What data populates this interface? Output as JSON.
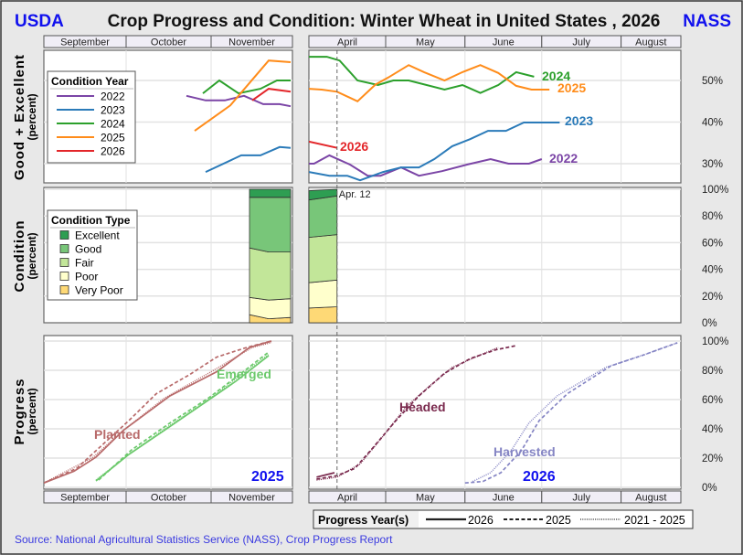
{
  "header": {
    "left_logo": "USDA",
    "title": "Crop Progress and Condition: Winter Wheat in United States , 2026",
    "right_logo": "NASS"
  },
  "footer": {
    "source": "Source: National Agricultural Statistics Service (NASS), Crop Progress Report"
  },
  "colors": {
    "logo": "#1010ee",
    "source": "#3a3ae0",
    "year_label": "#1010ee",
    "2022": "#7b45a6",
    "2023": "#2b7bb9",
    "2024": "#2ca02c",
    "2025": "#ff8c1a",
    "2026": "#e3262a",
    "Excellent": "#2e9e52",
    "Good": "#78c679",
    "Fair": "#c2e699",
    "Poor": "#ffffcc",
    "Very Poor": "#fed976",
    "Planted": "#b86a6a",
    "Emerged": "#6cc96c",
    "Headed": "#7a2a4e",
    "Harvested": "#8585c4"
  },
  "left_months": [
    "September",
    "October",
    "November"
  ],
  "right_months": [
    "April",
    "May",
    "June",
    "July",
    "August"
  ],
  "marker": {
    "label": "Apr. 12",
    "date": "04-12"
  },
  "chart_data": [
    {
      "type": "line",
      "ylabel": "Good + Excellent",
      "ylabel_sub": "(percent)",
      "yticks": [
        "30%",
        "40%",
        "50%"
      ],
      "ylim": [
        25,
        57
      ],
      "grid": true,
      "legend": {
        "title": "Condition Year",
        "placement": "top-left",
        "entries": [
          "2022",
          "2023",
          "2024",
          "2025",
          "2026"
        ]
      },
      "left_year": 2025,
      "right_year": 2026,
      "series": [
        {
          "name": "2022",
          "left": [
            [
              "10-23",
              46.3
            ],
            [
              "10-30",
              45.2
            ],
            [
              "11-06",
              45.2
            ],
            [
              "11-13",
              46.3
            ],
            [
              "11-20",
              44.3
            ],
            [
              "11-26",
              44.3
            ],
            [
              "11-30",
              43.8
            ]
          ],
          "right": [
            [
              "04-01",
              30
            ],
            [
              "04-03",
              30
            ],
            [
              "04-09",
              32
            ],
            [
              "04-17",
              29.8
            ],
            [
              "04-24",
              27.1
            ],
            [
              "04-29",
              27.1
            ],
            [
              "05-07",
              29.1
            ],
            [
              "05-14",
              27.1
            ],
            [
              "05-23",
              28.2
            ],
            [
              "06-02",
              29.8
            ],
            [
              "06-11",
              31.1
            ],
            [
              "06-18",
              30
            ],
            [
              "06-26",
              30
            ],
            [
              "07-01",
              31.1
            ]
          ]
        },
        {
          "name": "2023",
          "left": [
            [
              "10-30",
              28
            ],
            [
              "11-12",
              32
            ],
            [
              "11-19",
              32
            ],
            [
              "11-26",
              34
            ],
            [
              "11-30",
              33.8
            ]
          ],
          "right": [
            [
              "04-01",
              28
            ],
            [
              "04-09",
              27.1
            ],
            [
              "04-16",
              27.1
            ],
            [
              "04-21",
              26
            ],
            [
              "04-30",
              28
            ],
            [
              "05-07",
              29.1
            ],
            [
              "05-14",
              29.1
            ],
            [
              "05-20",
              31.1
            ],
            [
              "05-27",
              34.2
            ],
            [
              "06-03",
              35.9
            ],
            [
              "06-10",
              37.9
            ],
            [
              "06-17",
              37.9
            ],
            [
              "06-24",
              39.9
            ],
            [
              "07-08",
              39.9
            ]
          ]
        },
        {
          "name": "2024",
          "left": [
            [
              "10-29",
              46.9
            ],
            [
              "11-04",
              50
            ],
            [
              "11-11",
              46.9
            ],
            [
              "11-19",
              48
            ],
            [
              "11-25",
              50
            ],
            [
              "11-30",
              50
            ]
          ],
          "right": [
            [
              "04-01",
              55.7
            ],
            [
              "04-08",
              55.7
            ],
            [
              "04-13",
              54.8
            ],
            [
              "04-20",
              50
            ],
            [
              "04-28",
              48.9
            ],
            [
              "05-04",
              50
            ],
            [
              "05-10",
              50
            ],
            [
              "05-24",
              47.8
            ],
            [
              "05-31",
              48.9
            ],
            [
              "06-07",
              47
            ],
            [
              "06-14",
              48.9
            ],
            [
              "06-21",
              52
            ],
            [
              "06-28",
              50.9
            ]
          ]
        },
        {
          "name": "2025",
          "left": [
            [
              "10-26",
              37.9
            ],
            [
              "11-08",
              44
            ],
            [
              "11-22",
              54.8
            ],
            [
              "11-30",
              54.4
            ]
          ],
          "right": [
            [
              "04-01",
              48
            ],
            [
              "04-06",
              47.8
            ],
            [
              "04-12",
              47.3
            ],
            [
              "04-20",
              45
            ],
            [
              "04-27",
              49
            ],
            [
              "05-02",
              50.7
            ],
            [
              "05-10",
              53.7
            ],
            [
              "05-16",
              52
            ],
            [
              "05-24",
              50
            ],
            [
              "05-31",
              52
            ],
            [
              "06-07",
              53.7
            ],
            [
              "06-14",
              51.8
            ],
            [
              "06-21",
              48.7
            ],
            [
              "06-27",
              47.8
            ],
            [
              "07-04",
              47.8
            ]
          ]
        },
        {
          "name": "2026",
          "left": [
            [
              "11-16",
              45.2
            ],
            [
              "11-22",
              48
            ],
            [
              "11-30",
              47.3
            ]
          ],
          "right": [
            [
              "04-01",
              35.3
            ],
            [
              "04-12",
              33.8
            ]
          ]
        }
      ]
    },
    {
      "type": "area",
      "ylabel": "Condition",
      "ylabel_sub": "(percent)",
      "yticks": [
        "0%",
        "20%",
        "40%",
        "60%",
        "80%",
        "100%"
      ],
      "ylim": [
        0,
        100
      ],
      "stacked": true,
      "legend": {
        "title": "Condition Type",
        "placement": "top-left",
        "entries": [
          "Excellent",
          "Good",
          "Fair",
          "Poor",
          "Very Poor"
        ]
      },
      "categories_order": [
        "Very Poor",
        "Poor",
        "Fair",
        "Good",
        "Excellent"
      ],
      "left": [
        {
          "date": "11-15",
          "Very Poor": 6,
          "Poor": 13,
          "Fair": 37,
          "Good": 38,
          "Excellent": 6
        },
        {
          "date": "11-22",
          "Very Poor": 3,
          "Poor": 14,
          "Fair": 36,
          "Good": 41,
          "Excellent": 6
        },
        {
          "date": "11-30",
          "Very Poor": 4,
          "Poor": 14,
          "Fair": 35,
          "Good": 41,
          "Excellent": 6
        }
      ],
      "right": [
        {
          "date": "04-01",
          "Very Poor": 11,
          "Poor": 19,
          "Fair": 34,
          "Good": 28,
          "Excellent": 7
        },
        {
          "date": "04-12",
          "Very Poor": 12,
          "Poor": 20,
          "Fair": 34,
          "Good": 29,
          "Excellent": 5
        }
      ]
    },
    {
      "type": "line",
      "ylabel": "Progress",
      "ylabel_sub": "(percent)",
      "yticks": [
        "0%",
        "20%",
        "40%",
        "60%",
        "80%",
        "100%"
      ],
      "ylim": [
        0,
        100
      ],
      "legend": {
        "title": "Progress Year(s)",
        "placement": "bottom",
        "entries": [
          {
            "label": "2026",
            "style": "solid"
          },
          {
            "label": "2025",
            "style": "dashed"
          },
          {
            "label": "2021 - 2025",
            "style": "dotted"
          }
        ]
      },
      "left_year_label": "2025",
      "right_year_label": "2026",
      "series": [
        {
          "name": "Planted",
          "panel": "left",
          "style": "solid",
          "points": [
            [
              "09-01",
              3
            ],
            [
              "09-12",
              11
            ],
            [
              "09-20",
              20.6
            ],
            [
              "09-30",
              39
            ],
            [
              "10-17",
              62.5
            ],
            [
              "11-03",
              79
            ],
            [
              "11-15",
              95.6
            ],
            [
              "11-23",
              100
            ]
          ]
        },
        {
          "name": "Planted",
          "panel": "left",
          "style": "dashed",
          "points": [
            [
              "09-01",
              3
            ],
            [
              "09-13",
              13
            ],
            [
              "10-02",
              45.6
            ],
            [
              "10-12",
              64
            ],
            [
              "10-24",
              76.9
            ],
            [
              "11-03",
              89
            ],
            [
              "11-14",
              95.6
            ],
            [
              "11-23",
              100
            ]
          ]
        },
        {
          "name": "Planted",
          "panel": "left",
          "style": "dotted",
          "points": [
            [
              "09-01",
              3
            ],
            [
              "09-19",
              20.6
            ],
            [
              "09-30",
              39
            ],
            [
              "10-15",
              61
            ],
            [
              "11-01",
              79
            ],
            [
              "11-16",
              95.6
            ],
            [
              "11-23",
              99
            ]
          ]
        },
        {
          "name": "Emerged",
          "panel": "left",
          "style": "solid",
          "points": [
            [
              "09-20",
              4.4
            ],
            [
              "10-02",
              22.5
            ],
            [
              "10-15",
              39
            ],
            [
              "10-29",
              57
            ],
            [
              "11-10",
              72.5
            ],
            [
              "11-22",
              90
            ]
          ]
        },
        {
          "name": "Emerged",
          "panel": "left",
          "style": "dashed",
          "points": [
            [
              "09-21",
              5
            ],
            [
              "10-03",
              25.6
            ],
            [
              "10-17",
              44
            ],
            [
              "10-31",
              61
            ],
            [
              "11-12",
              78
            ],
            [
              "11-22",
              92.5
            ]
          ]
        },
        {
          "name": "Emerged",
          "panel": "left",
          "style": "dotted",
          "points": [
            [
              "09-20",
              5
            ],
            [
              "10-03",
              24
            ],
            [
              "10-17",
              42.5
            ],
            [
              "10-31",
              60
            ],
            [
              "11-12",
              77
            ],
            [
              "11-22",
              91
            ]
          ]
        },
        {
          "name": "Headed",
          "panel": "right",
          "style": "solid",
          "points": [
            [
              "04-04",
              7
            ],
            [
              "04-11",
              10
            ]
          ]
        },
        {
          "name": "Headed",
          "panel": "right",
          "style": "dashed",
          "points": [
            [
              "04-04",
              5.6
            ],
            [
              "04-12",
              8
            ],
            [
              "04-19",
              13
            ],
            [
              "04-26",
              27
            ],
            [
              "05-05",
              45.6
            ],
            [
              "05-14",
              62.5
            ],
            [
              "05-24",
              78
            ],
            [
              "06-03",
              88
            ],
            [
              "06-13",
              94
            ],
            [
              "06-21",
              96.9
            ]
          ]
        },
        {
          "name": "Headed",
          "panel": "right",
          "style": "dotted",
          "points": [
            [
              "04-04",
              5
            ],
            [
              "04-12",
              7
            ],
            [
              "04-21",
              16
            ],
            [
              "04-30",
              35
            ],
            [
              "05-09",
              55
            ],
            [
              "05-18",
              69
            ],
            [
              "05-27",
              82
            ],
            [
              "06-05",
              89
            ],
            [
              "06-14",
              95.6
            ]
          ]
        },
        {
          "name": "Harvested",
          "panel": "right",
          "style": "dashed",
          "points": [
            [
              "06-01",
              3
            ],
            [
              "06-08",
              4
            ],
            [
              "06-15",
              10
            ],
            [
              "06-23",
              25
            ],
            [
              "06-30",
              45.6
            ],
            [
              "07-11",
              64
            ],
            [
              "07-28",
              83
            ],
            [
              "08-10",
              90.6
            ],
            [
              "08-23",
              98.8
            ]
          ]
        },
        {
          "name": "Harvested",
          "panel": "right",
          "style": "dotted",
          "points": [
            [
              "06-04",
              4
            ],
            [
              "06-11",
              10
            ],
            [
              "06-19",
              25
            ],
            [
              "06-26",
              44
            ],
            [
              "07-07",
              62.5
            ],
            [
              "07-26",
              82
            ],
            [
              "08-10",
              90.6
            ],
            [
              "08-23",
              98.8
            ]
          ]
        }
      ]
    }
  ]
}
